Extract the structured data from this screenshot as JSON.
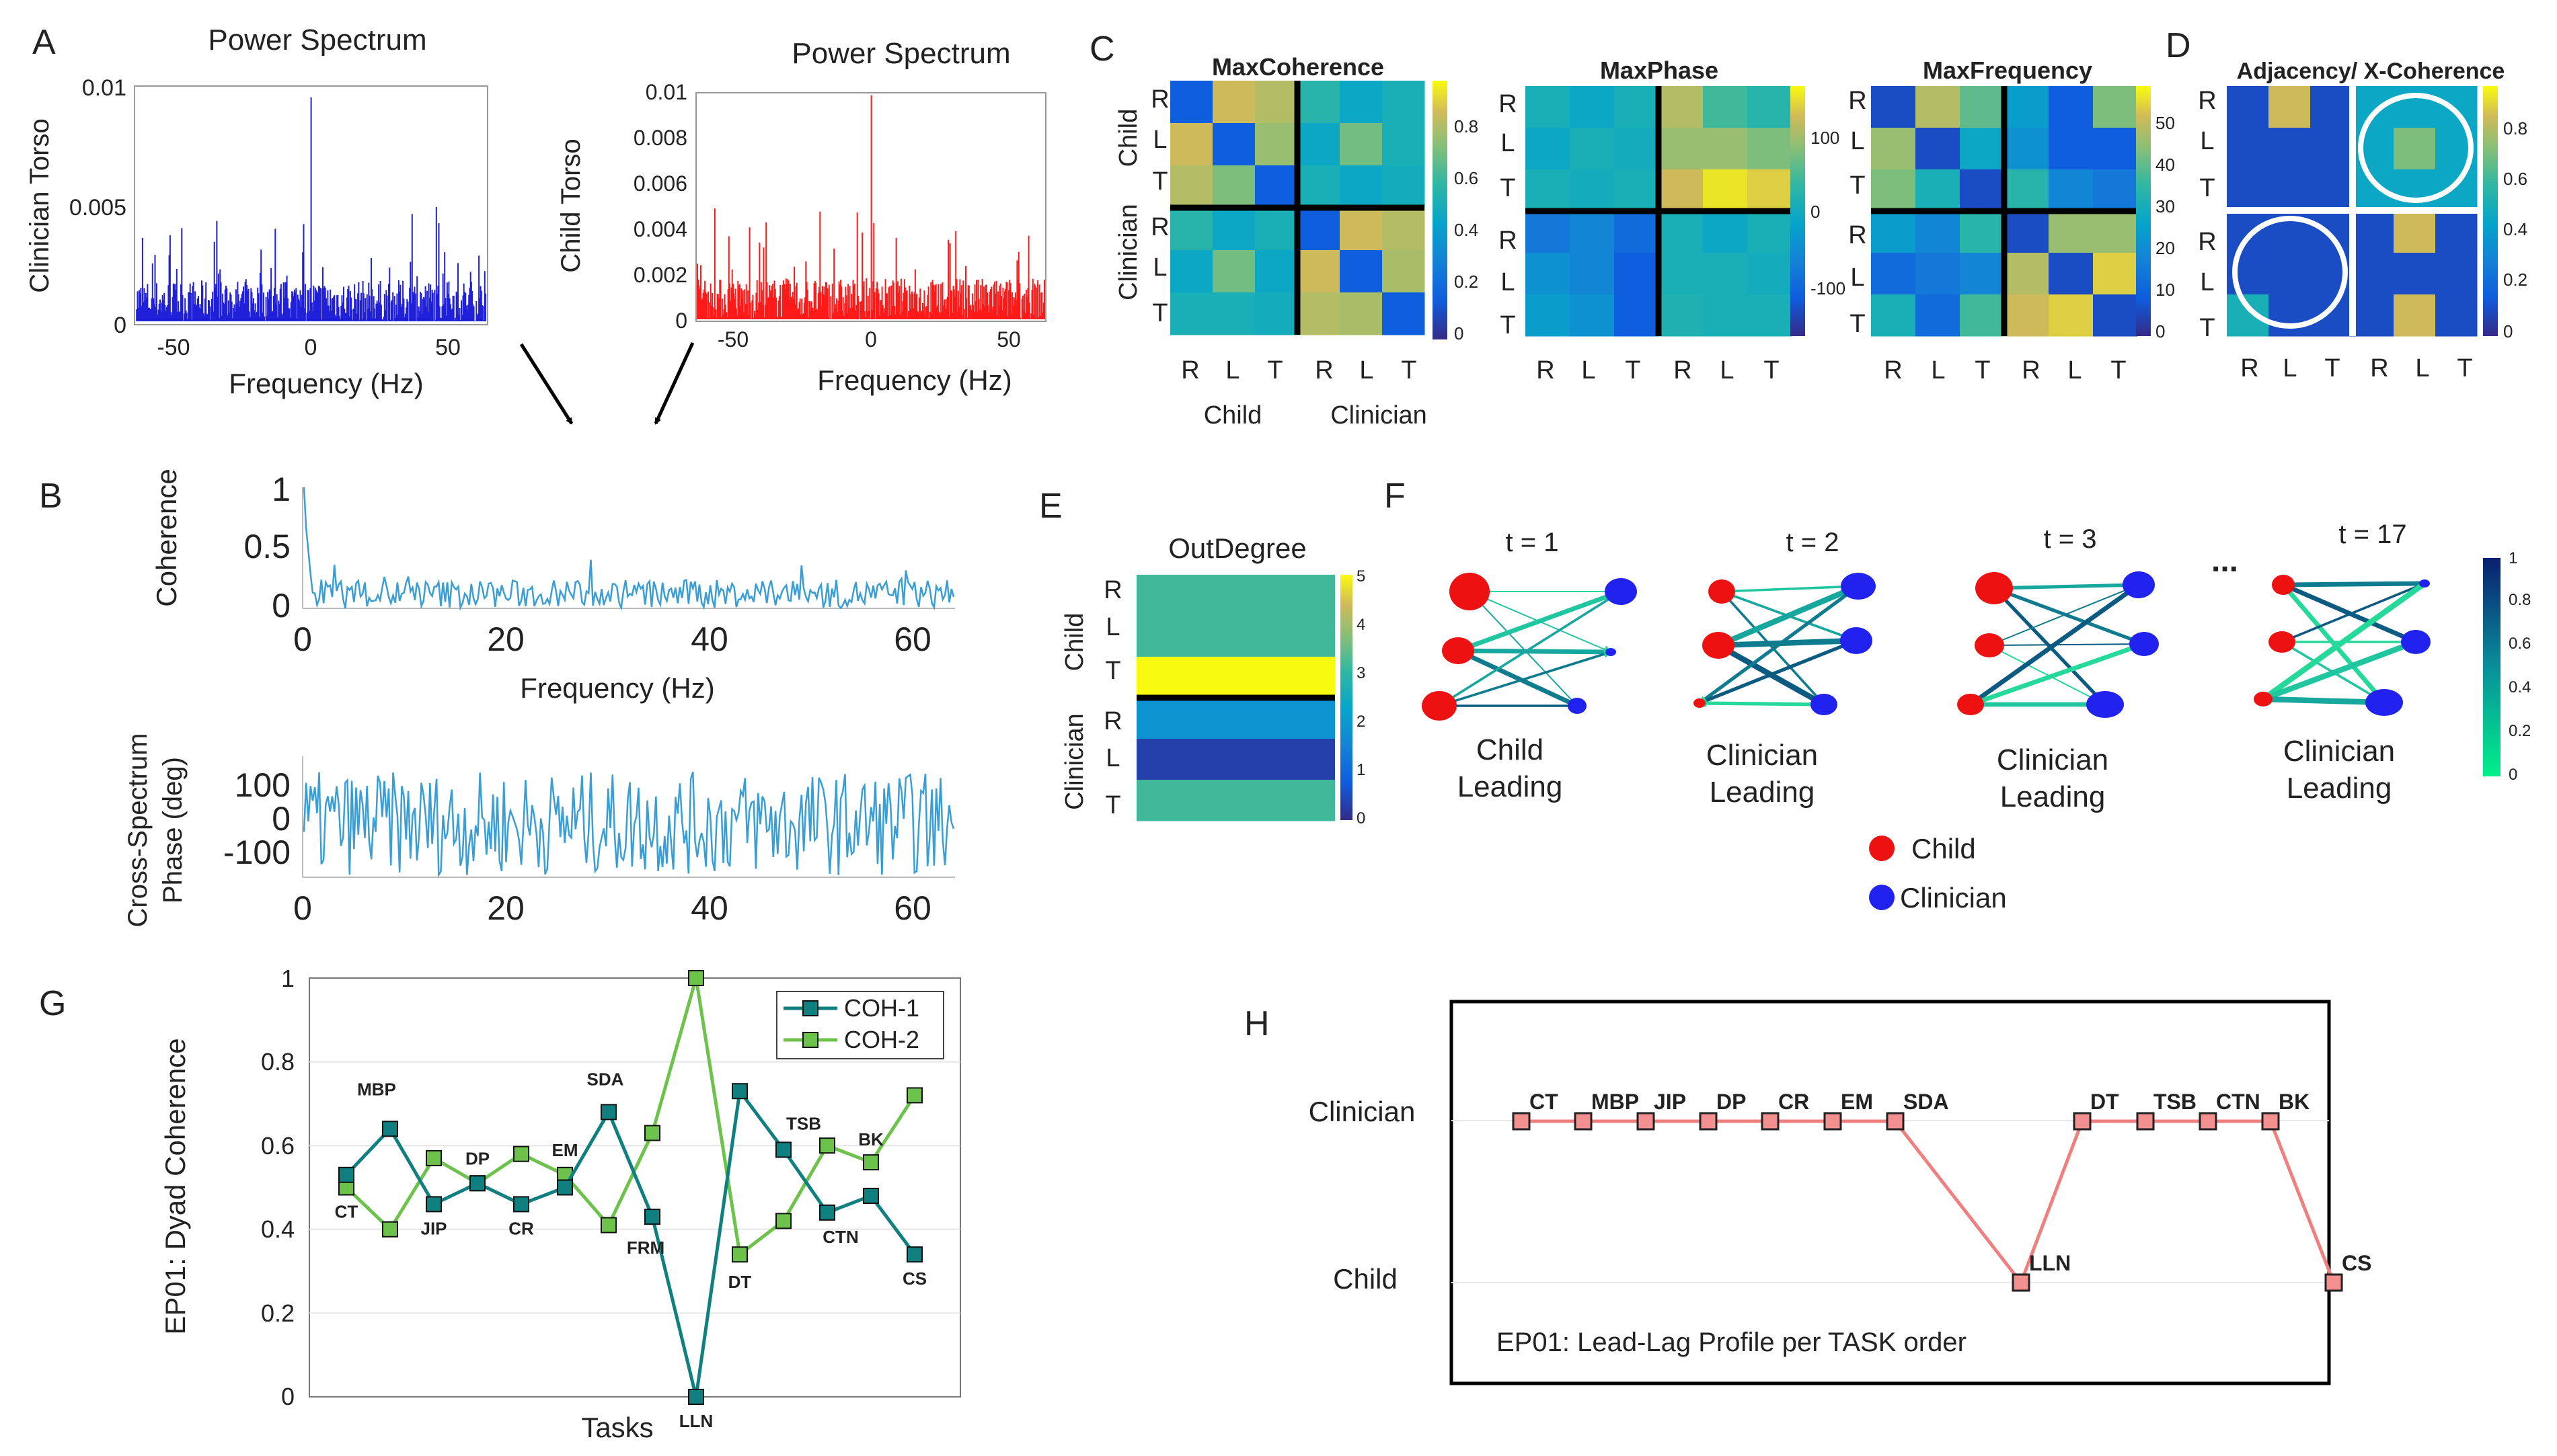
{
  "panel_letters": [
    "A",
    "B",
    "C",
    "D",
    "E",
    "F",
    "G",
    "H"
  ],
  "common": {
    "frequency_label": "Frequency (Hz)",
    "R": "R",
    "L": "L",
    "T": "T"
  },
  "panelA": {
    "left": {
      "title": "Power Spectrum",
      "ylabel": "Clinician Torso",
      "yticks": [
        "0",
        "0.005",
        "0.01"
      ],
      "xticks": [
        "-50",
        "0",
        "50"
      ],
      "color": "#2020d8"
    },
    "right": {
      "title": "Power Spectrum",
      "ylabel": "Child Torso",
      "yticks": [
        "0",
        "0.002",
        "0.004",
        "0.006",
        "0.008",
        "0.01"
      ],
      "xticks": [
        "-50",
        "0",
        "50"
      ],
      "color": "#ff1a1a"
    }
  },
  "panelB": {
    "coherence": {
      "ylabel": "Coherence",
      "yticks": [
        "0",
        "0.5",
        "1"
      ],
      "xticks": [
        "0",
        "20",
        "40",
        "60"
      ],
      "color": "#3a9ed6"
    },
    "phase": {
      "ylabel1": "Cross-Spectrum",
      "ylabel2": "Phase (deg)",
      "yticks": [
        "-100",
        "0",
        "100"
      ],
      "xticks": [
        "0",
        "20",
        "40",
        "60"
      ],
      "color": "#3a9ed6"
    }
  },
  "panelC": {
    "group_child": "Child",
    "group_clinician": "Clinician",
    "maps": [
      {
        "title": "MaxCoherence",
        "cbar": [
          "0",
          "0.2",
          "0.4",
          "0.6",
          "0.8"
        ],
        "grid": [
          [
            0.15,
            0.85,
            0.8,
            0.55,
            0.45,
            0.5
          ],
          [
            0.85,
            0.15,
            0.75,
            0.45,
            0.68,
            0.5
          ],
          [
            0.8,
            0.7,
            0.15,
            0.5,
            0.45,
            0.48
          ],
          [
            0.55,
            0.45,
            0.5,
            0.15,
            0.85,
            0.8
          ],
          [
            0.45,
            0.68,
            0.45,
            0.85,
            0.15,
            0.78
          ],
          [
            0.5,
            0.5,
            0.48,
            0.8,
            0.78,
            0.15
          ]
        ]
      },
      {
        "title": "MaxPhase",
        "cbar": [
          "-100",
          "0",
          "100"
        ],
        "grid": [
          [
            0.5,
            0.45,
            0.5,
            0.8,
            0.6,
            0.55
          ],
          [
            0.45,
            0.5,
            0.48,
            0.75,
            0.75,
            0.7
          ],
          [
            0.5,
            0.48,
            0.5,
            0.85,
            0.95,
            0.9
          ],
          [
            0.25,
            0.3,
            0.2,
            0.5,
            0.45,
            0.5
          ],
          [
            0.35,
            0.3,
            0.15,
            0.5,
            0.5,
            0.48
          ],
          [
            0.4,
            0.35,
            0.15,
            0.52,
            0.5,
            0.5
          ]
        ]
      },
      {
        "title": "MaxFrequency",
        "cbar": [
          "0",
          "10",
          "20",
          "30",
          "40",
          "50"
        ],
        "grid": [
          [
            0.1,
            0.8,
            0.65,
            0.4,
            0.15,
            0.7
          ],
          [
            0.75,
            0.1,
            0.45,
            0.35,
            0.15,
            0.15
          ],
          [
            0.7,
            0.5,
            0.1,
            0.55,
            0.3,
            0.25
          ],
          [
            0.4,
            0.3,
            0.55,
            0.1,
            0.75,
            0.75
          ],
          [
            0.2,
            0.25,
            0.3,
            0.8,
            0.1,
            0.9
          ],
          [
            0.5,
            0.2,
            0.6,
            0.85,
            0.9,
            0.1
          ]
        ]
      }
    ]
  },
  "panelD": {
    "title": "Adjacency/ X-Coherence",
    "cbar": [
      "0",
      "0.2",
      "0.4",
      "0.6",
      "0.8"
    ],
    "grid": [
      [
        0.1,
        0.85,
        0.1,
        0.45,
        0.45,
        0.45
      ],
      [
        0.1,
        0.1,
        0.1,
        0.45,
        0.7,
        0.45
      ],
      [
        0.1,
        0.1,
        0.1,
        0.45,
        0.45,
        0.45
      ],
      [
        0.1,
        0.1,
        0.1,
        0.1,
        0.85,
        0.1
      ],
      [
        0.1,
        0.1,
        0.1,
        0.1,
        0.1,
        0.1
      ],
      [
        0.5,
        0.1,
        0.1,
        0.1,
        0.85,
        0.1
      ]
    ]
  },
  "panelE": {
    "title": "OutDegree",
    "group_child": "Child",
    "group_clinician": "Clinician",
    "cbar": [
      "0",
      "1",
      "2",
      "3",
      "4",
      "5"
    ],
    "values": [
      3,
      3,
      5,
      1.8,
      0.3,
      3
    ]
  },
  "panelF": {
    "times": [
      "t = 1",
      "t = 2",
      "t = 3",
      "t = 17"
    ],
    "labels": [
      [
        "Child",
        "Leading"
      ],
      [
        "Clinician",
        "Leading"
      ],
      [
        "Clinician",
        "Leading"
      ],
      [
        "Clinician",
        "Leading"
      ]
    ],
    "ellipsis": "...",
    "cbar": [
      "0",
      "0.2",
      "0.4",
      "0.6",
      "0.8",
      "1"
    ],
    "legend": [
      {
        "label": "Child",
        "color": "#ee1111"
      },
      {
        "label": "Clinician",
        "color": "#2222ee"
      }
    ]
  },
  "chart_data": [
    {
      "type": "line",
      "title": "",
      "xlabel": "Tasks",
      "ylabel": "EP01: Dyad Coherence",
      "ylim": [
        0,
        1
      ],
      "yticks": [
        "0",
        "0.2",
        "0.4",
        "0.6",
        "0.8",
        "1"
      ],
      "legend_position": "top-right",
      "categories": [
        "CT",
        "MBP",
        "JIP",
        "DP",
        "CR",
        "EM",
        "SDA",
        "FRM",
        "LLN",
        "DT",
        "TSB",
        "CTN",
        "BK",
        "CS"
      ],
      "series": [
        {
          "name": "COH-1",
          "color": "#0f7f7f",
          "values": [
            0.53,
            0.64,
            0.46,
            0.51,
            0.46,
            0.5,
            0.68,
            0.43,
            0.0,
            0.73,
            0.59,
            0.44,
            0.48,
            0.34
          ]
        },
        {
          "name": "COH-2",
          "color": "#6cc24a",
          "values": [
            0.5,
            0.4,
            0.57,
            0.51,
            0.58,
            0.53,
            0.41,
            0.63,
            1.0,
            0.34,
            0.42,
            0.6,
            0.56,
            0.72
          ]
        }
      ]
    },
    {
      "type": "line",
      "title": "EP01: Lead-Lag Profile per TASK order",
      "categories_top": [
        "Clinician",
        "Child"
      ],
      "series": [
        {
          "name": "lead-lag",
          "color": "#f08080",
          "points": [
            [
              "CT",
              "Clinician"
            ],
            [
              "MBP",
              "Clinician"
            ],
            [
              "JIP",
              "Clinician"
            ],
            [
              "DP",
              "Clinician"
            ],
            [
              "CR",
              "Clinician"
            ],
            [
              "EM",
              "Clinician"
            ],
            [
              "SDA",
              "Clinician"
            ],
            [
              "LLN",
              "Child"
            ],
            [
              "DT",
              "Clinician"
            ],
            [
              "TSB",
              "Clinician"
            ],
            [
              "CTN",
              "Clinician"
            ],
            [
              "BK",
              "Clinician"
            ],
            [
              "CS",
              "Child"
            ]
          ]
        }
      ]
    }
  ]
}
